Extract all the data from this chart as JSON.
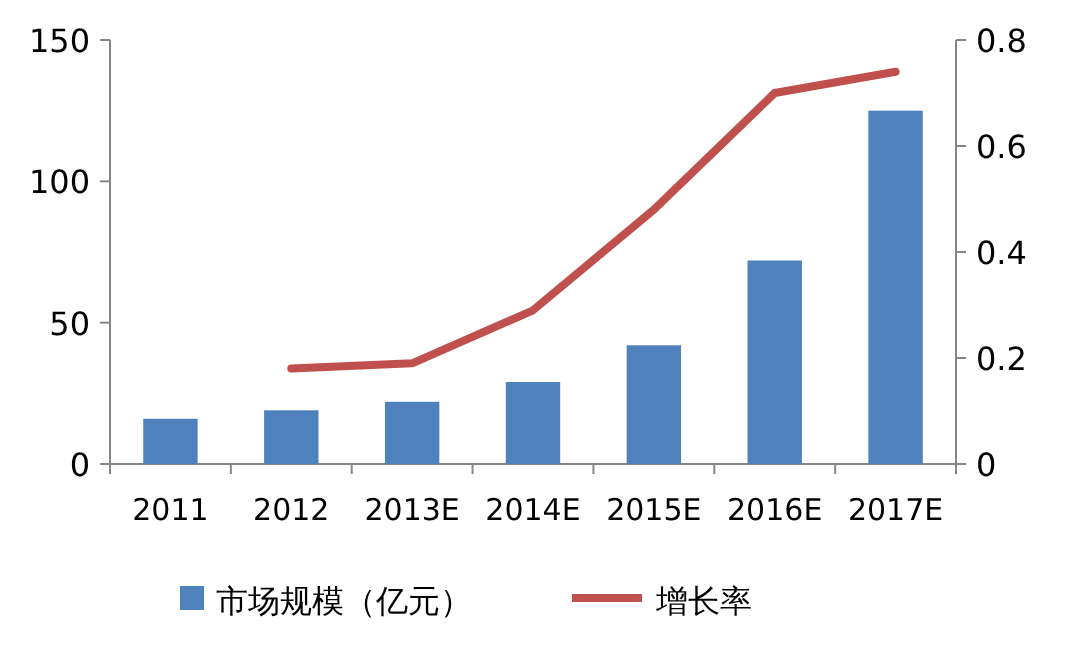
{
  "chart_data": {
    "type": "bar",
    "categories": [
      "2011",
      "2012",
      "2013E",
      "2014E",
      "2015E",
      "2016E",
      "2017E"
    ],
    "series": [
      {
        "name": "市场规模（亿元）",
        "color": "#4f81bd",
        "values": [
          16,
          19,
          22,
          29,
          42,
          72,
          125
        ]
      },
      {
        "name": "增长率",
        "type": "line",
        "axis": "y2",
        "color": "#c0504d",
        "values": [
          null,
          0.18,
          0.19,
          0.29,
          0.48,
          0.7,
          0.74
        ]
      }
    ],
    "ylim": [
      0,
      150
    ],
    "yticks": [
      0,
      50,
      100,
      150
    ],
    "y2lim": [
      0,
      0.8
    ],
    "y2ticks": [
      0,
      0.2,
      0.4,
      0.6,
      0.8
    ],
    "legend": "bottom"
  }
}
